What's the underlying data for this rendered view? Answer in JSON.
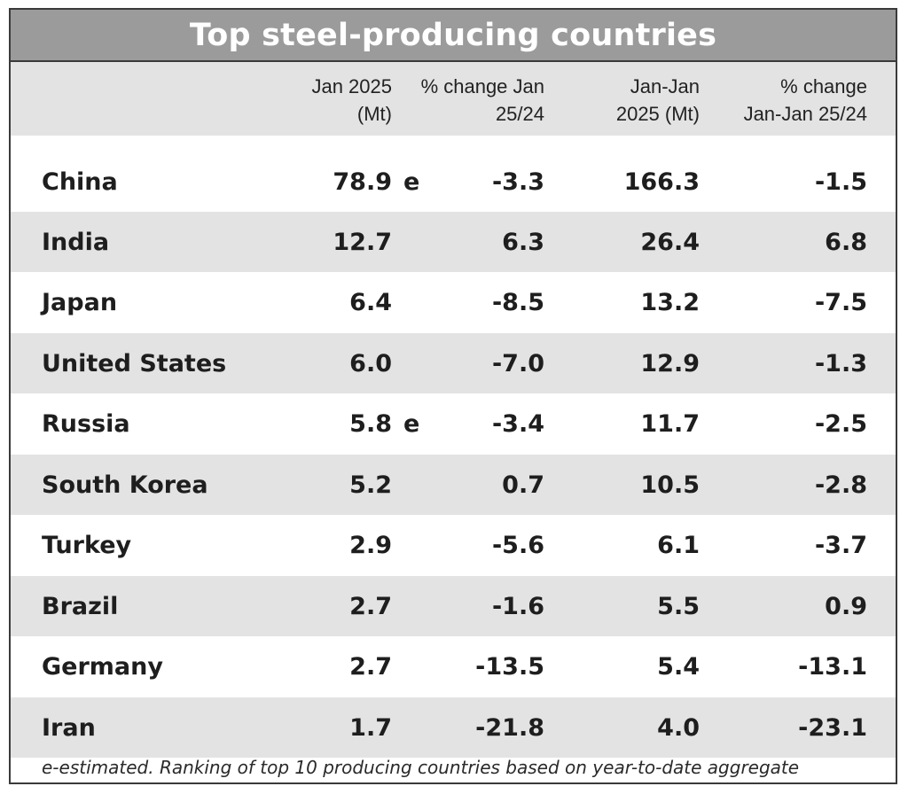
{
  "chart_data": {
    "type": "table",
    "title": "Top steel-producing countries",
    "columns": [
      "",
      "Jan 2025\n(Mt)",
      "% change Jan\n25/24",
      "Jan-Jan\n2025 (Mt)",
      "% change\nJan-Jan 25/24"
    ],
    "rows": [
      {
        "country": "China",
        "jan2025": "78.9",
        "est": "e",
        "chg_jan": "-3.3",
        "ytd": "166.3",
        "chg_ytd": "-1.5"
      },
      {
        "country": "India",
        "jan2025": "12.7",
        "est": "",
        "chg_jan": "6.3",
        "ytd": "26.4",
        "chg_ytd": "6.8"
      },
      {
        "country": "Japan",
        "jan2025": "6.4",
        "est": "",
        "chg_jan": "-8.5",
        "ytd": "13.2",
        "chg_ytd": "-7.5"
      },
      {
        "country": "United States",
        "jan2025": "6.0",
        "est": "",
        "chg_jan": "-7.0",
        "ytd": "12.9",
        "chg_ytd": "-1.3"
      },
      {
        "country": "Russia",
        "jan2025": "5.8",
        "est": "e",
        "chg_jan": "-3.4",
        "ytd": "11.7",
        "chg_ytd": "-2.5"
      },
      {
        "country": "South Korea",
        "jan2025": "5.2",
        "est": "",
        "chg_jan": "0.7",
        "ytd": "10.5",
        "chg_ytd": "-2.8"
      },
      {
        "country": "Turkey",
        "jan2025": "2.9",
        "est": "",
        "chg_jan": "-5.6",
        "ytd": "6.1",
        "chg_ytd": "-3.7"
      },
      {
        "country": "Brazil",
        "jan2025": "2.7",
        "est": "",
        "chg_jan": "-1.6",
        "ytd": "5.5",
        "chg_ytd": "0.9"
      },
      {
        "country": "Germany",
        "jan2025": "2.7",
        "est": "",
        "chg_jan": "-13.5",
        "ytd": "5.4",
        "chg_ytd": "-13.1"
      },
      {
        "country": "Iran",
        "jan2025": "1.7",
        "est": "",
        "chg_jan": "-21.8",
        "ytd": "4.0",
        "chg_ytd": "-23.1"
      }
    ],
    "footnote": "e-estimated. Ranking of top 10 producing countries based on year-to-date aggregate"
  },
  "colors": {
    "title_bg": "#9b9b9b",
    "title_text": "#ffffff",
    "row_shade": "#e3e3e3",
    "border": "#3a3a3a"
  }
}
